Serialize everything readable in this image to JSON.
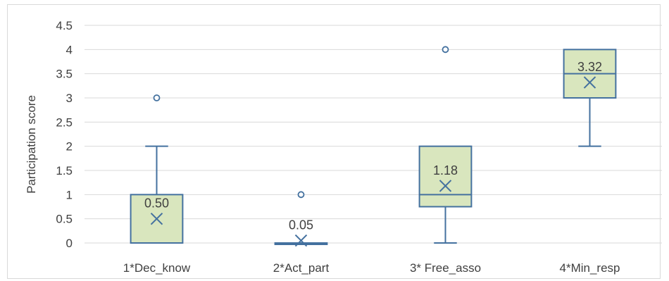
{
  "chart_data": {
    "type": "box",
    "ylabel": "Participation score",
    "ylim": [
      0,
      4.5
    ],
    "ytick_step": 0.5,
    "yticks": [
      "0",
      "0.5",
      "1",
      "1.5",
      "2",
      "2.5",
      "3",
      "3.5",
      "4",
      "4.5"
    ],
    "grid": true,
    "categories": [
      "1*Dec_know",
      "2*Act_part",
      "3* Free_asso",
      "4*Min_resp"
    ],
    "boxes": [
      {
        "category": "1*Dec_know",
        "min": 0,
        "q1": 0,
        "median": 0,
        "q3": 1,
        "max": 2,
        "mean": 0.5,
        "mean_label": "0.50",
        "outliers": [
          3
        ]
      },
      {
        "category": "2*Act_part",
        "min": 0,
        "q1": 0,
        "median": 0,
        "q3": 0,
        "max": 0,
        "mean": 0.05,
        "mean_label": "0.05",
        "outliers": [
          1
        ]
      },
      {
        "category": "3* Free_asso",
        "min": 0,
        "q1": 0.75,
        "median": 1,
        "q3": 2,
        "max": 2,
        "mean": 1.18,
        "mean_label": "1.18",
        "outliers": [
          4
        ]
      },
      {
        "category": "4*Min_resp",
        "min": 2,
        "q1": 3,
        "median": 3.5,
        "q3": 4,
        "max": 4,
        "mean": 3.32,
        "mean_label": "3.32",
        "outliers": []
      }
    ],
    "colors": {
      "box_fill": "#d9e6be",
      "box_stroke": "#44719f",
      "grid": "#d9d9d9",
      "text": "#404040"
    }
  }
}
